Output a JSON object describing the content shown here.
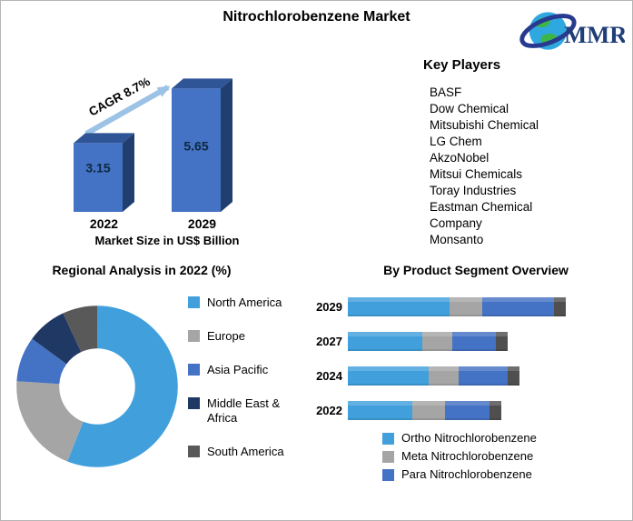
{
  "header": {
    "title": "Nitrochlorobenzene Market",
    "logo_text": "MMR"
  },
  "key_players": {
    "title": "Key Players",
    "lines": [
      "BASF",
      "Dow Chemical",
      "Mitsubishi Chemical",
      "LG Chem",
      "AkzoNobel",
      "Mitsui Chemicals",
      "Toray Industries",
      "Eastman Chemical",
      "Company",
      "Monsanto"
    ]
  },
  "colors": {
    "bar_front": "#4472C4",
    "bar_top": "#2F5597",
    "bar_side": "#203E6E",
    "arrow": "#9CC2E5",
    "cap": "#4F4F4F",
    "logo_blue": "#1F3E78",
    "globe_blue": "#2FA8E0",
    "globe_green": "#3CB54A"
  },
  "chart_data": [
    {
      "type": "bar",
      "title": "Market Size in US$ Billion",
      "categories": [
        "2022",
        "2029"
      ],
      "values": [
        3.15,
        5.65
      ],
      "annotation": "CAGR 8.7%",
      "ylim": [
        0,
        6
      ],
      "grid": false,
      "bar_color": "#4472C4"
    },
    {
      "type": "pie",
      "subtype": "donut",
      "title": "Regional Analysis in 2022 (%)",
      "labels": [
        "North America",
        "Europe",
        "Asia Pacific",
        "Middle East & Africa",
        "South America"
      ],
      "values": [
        56,
        20,
        9,
        8,
        7
      ],
      "colors": [
        "#41A0DC",
        "#A5A5A5",
        "#4472C4",
        "#1F3864",
        "#595959"
      ],
      "legend_position": "right"
    },
    {
      "type": "bar",
      "subtype": "stacked-horizontal",
      "title": "By Product Segment Overview",
      "categories": [
        "2029",
        "2027",
        "2024",
        "2022"
      ],
      "series": [
        {
          "name": "Ortho Nitrochlorobenzene",
          "color": "#41A0DC",
          "values": [
            44,
            32,
            35,
            28
          ]
        },
        {
          "name": "Meta Nitrochlorobenzene",
          "color": "#A5A5A5",
          "values": [
            14,
            13,
            13,
            14
          ]
        },
        {
          "name": "Para Nitrochlorobenzene",
          "color": "#4472C4",
          "values": [
            31,
            19,
            21,
            19
          ]
        }
      ],
      "legend_position": "bottom"
    }
  ]
}
